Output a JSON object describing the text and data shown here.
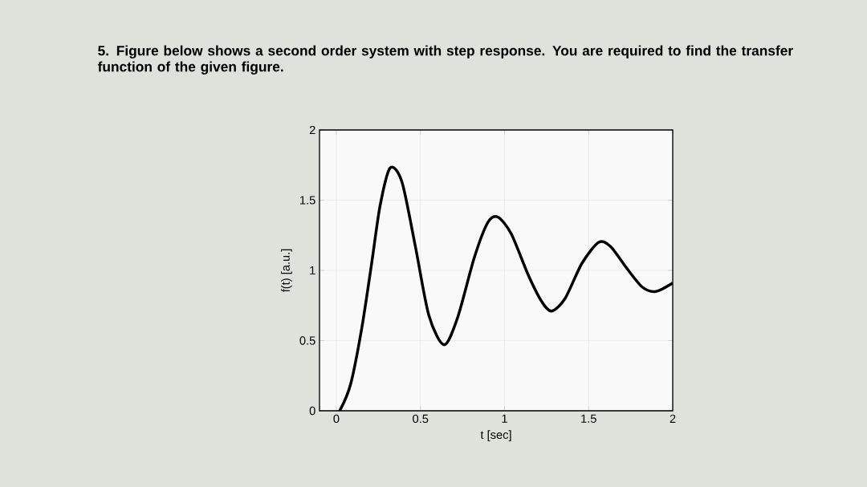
{
  "chart_data": {
    "type": "line",
    "title": "5. Figure below shows a second order system with step response. You are required to find the transfer function of the given figure.",
    "xlabel": "t [sec]",
    "ylabel": "f(t) [a.u.]",
    "x": [
      0,
      0.02,
      0.085,
      0.15,
      0.21,
      0.26,
      0.32,
      0.39,
      0.47,
      0.55,
      0.64,
      0.72,
      0.82,
      0.9,
      0.96,
      1.04,
      1.14,
      1.22,
      1.28,
      1.36,
      1.46,
      1.56,
      1.63,
      1.73,
      1.82,
      1.9,
      2.0
    ],
    "values": [
      0,
      0,
      0.19,
      0.58,
      1.05,
      1.46,
      1.73,
      1.63,
      1.17,
      0.68,
      0.47,
      0.66,
      1.09,
      1.34,
      1.38,
      1.26,
      0.97,
      0.78,
      0.71,
      0.8,
      1.05,
      1.2,
      1.17,
      1.01,
      0.88,
      0.85,
      0.91
    ],
    "color": "#000000",
    "xlim": [
      -0.1,
      2
    ],
    "ylim": [
      0,
      2
    ],
    "xticks": [
      0,
      0.5,
      1,
      1.5,
      2
    ],
    "yticks": [
      0,
      0.5,
      1,
      1.5,
      2
    ],
    "grid": true
  }
}
